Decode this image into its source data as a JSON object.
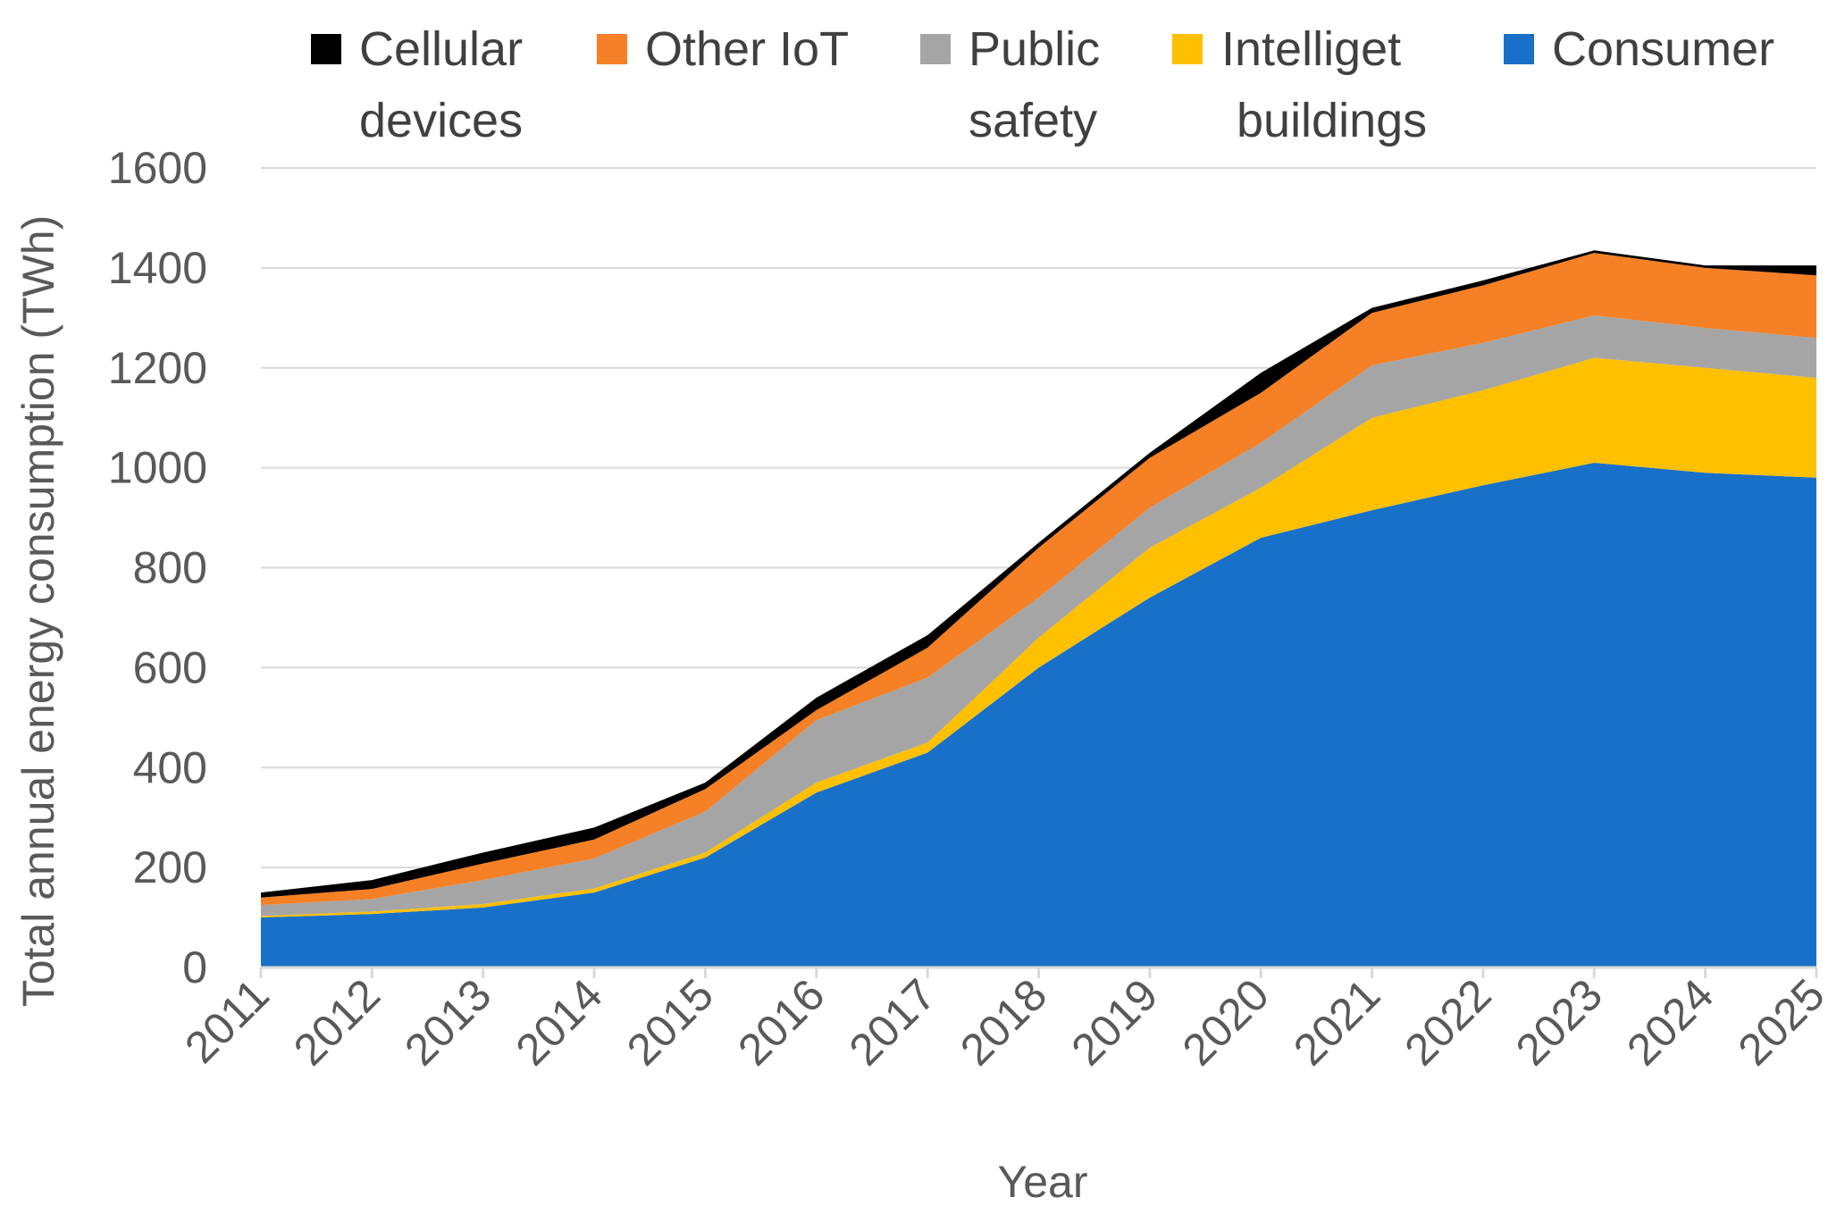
{
  "chart_data": {
    "type": "area",
    "stacked": true,
    "title": "",
    "xlabel": "Year",
    "ylabel": "Total annual energy consumption (TWh)",
    "ylim": [
      0,
      1600
    ],
    "yticks": [
      0,
      200,
      400,
      600,
      800,
      1000,
      1200,
      1400,
      1600
    ],
    "grid": true,
    "legend_position": "top",
    "categories": [
      "2011",
      "2012",
      "2013",
      "2014",
      "2015",
      "2016",
      "2017",
      "2018",
      "2019",
      "2020",
      "2021",
      "2022",
      "2023",
      "2024",
      "2025"
    ],
    "series": [
      {
        "name": "Consumer",
        "legend_lines": [
          "Consumer"
        ],
        "color": "#1870C9",
        "values": [
          100,
          107,
          120,
          150,
          220,
          350,
          430,
          600,
          740,
          860,
          915,
          965,
          1010,
          990,
          980
        ]
      },
      {
        "name": "Intelliget buildings",
        "legend_lines": [
          "Intelliget",
          "buildings"
        ],
        "color": "#FFC000",
        "values": [
          3,
          5,
          7,
          8,
          10,
          20,
          20,
          60,
          100,
          100,
          185,
          190,
          210,
          210,
          200
        ]
      },
      {
        "name": "Public safety",
        "legend_lines": [
          "Public",
          "safety"
        ],
        "color": "#A5A5A5",
        "values": [
          22,
          25,
          48,
          60,
          82,
          125,
          130,
          80,
          80,
          90,
          105,
          95,
          85,
          80,
          80
        ]
      },
      {
        "name": "Other IoT",
        "legend_lines": [
          "Other IoT"
        ],
        "color": "#F58025",
        "values": [
          15,
          20,
          33,
          38,
          45,
          20,
          60,
          100,
          100,
          100,
          105,
          115,
          125,
          120,
          125
        ]
      },
      {
        "name": "Cellular devices",
        "legend_lines": [
          "Cellular",
          "devices"
        ],
        "color": "#000000",
        "values": [
          10,
          18,
          22,
          24,
          13,
          25,
          25,
          10,
          10,
          40,
          10,
          10,
          5,
          5,
          20
        ]
      }
    ],
    "legend_order": [
      "Cellular devices",
      "Other IoT",
      "Public safety",
      "Intelliget buildings",
      "Consumer"
    ]
  }
}
